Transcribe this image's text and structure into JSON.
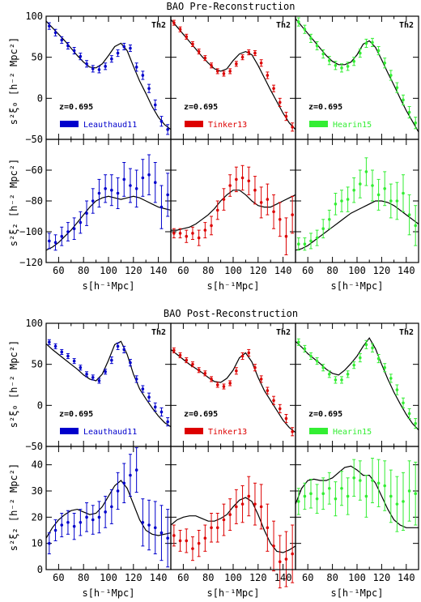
{
  "figure": {
    "blocks": [
      {
        "title": "BAO Pre-Reconstruction"
      },
      {
        "title": "BAO Post-Reconstruction"
      }
    ],
    "column_labels": [
      "Leauthaud11",
      "Tinker13",
      "Hearin15"
    ],
    "column_colors": [
      "#0000cc",
      "#dd0000",
      "#33ee33"
    ],
    "redshift_label": "z=0.695",
    "model_label": "Th2",
    "ylabel_xi0": "s²ξ₀ [h⁻² Mpc²]",
    "ylabel_xi2": "s²ξ₂ [h⁻² Mpc²]",
    "xlabel": "s[h⁻¹Mpc]"
  },
  "chart_data": [
    {
      "type": "scatter",
      "title": "BAO Pre-Reconstruction",
      "panel": "monopole",
      "xlim": [
        50,
        150
      ],
      "ylim": [
        -50,
        100
      ],
      "xticks": [
        60,
        80,
        100,
        120,
        140
      ],
      "yticks": [
        -50,
        0,
        50,
        100
      ],
      "ylabel": "s²ξ₀ [h⁻² Mpc²]",
      "x": [
        52.5,
        57.5,
        62.5,
        67.5,
        72.5,
        77.5,
        82.5,
        87.5,
        92.5,
        97.5,
        102.5,
        107.5,
        112.5,
        117.5,
        122.5,
        127.5,
        132.5,
        137.5,
        142.5,
        147.5
      ],
      "model": {
        "x": [
          50,
          55,
          60,
          65,
          70,
          75,
          80,
          85,
          90,
          95,
          100,
          105,
          110,
          115,
          120,
          125,
          130,
          135,
          140,
          145,
          150
        ],
        "series": [
          {
            "y": [
              94,
              86,
              78,
              70,
              61,
              52,
              44,
              38,
              37,
              42,
              52,
              63,
              67,
              58,
              39,
              21,
              6,
              -10,
              -23,
              -32,
              -38
            ]
          },
          {
            "y": [
              96,
              87,
              78,
              69,
              60,
              51,
              43,
              36,
              33,
              36,
              46,
              54,
              57,
              53,
              40,
              25,
              10,
              -4,
              -18,
              -30,
              -38
            ]
          },
          {
            "y": [
              97,
              88,
              79,
              70,
              61,
              52,
              45,
              41,
              41,
              44,
              53,
              66,
              70,
              62,
              47,
              31,
              16,
              0,
              -15,
              -28,
              -41
            ]
          }
        ]
      },
      "series": [
        {
          "name": "Leauthaud11",
          "y": [
            88,
            80,
            71,
            64,
            58,
            51,
            42,
            36,
            35,
            39,
            48,
            55,
            63,
            61,
            38,
            28,
            12,
            -8,
            -28,
            -38
          ],
          "err": [
            4,
            4,
            4,
            4,
            4,
            4,
            4,
            4,
            4,
            4,
            4,
            4,
            4,
            4,
            5,
            5,
            5,
            6,
            6,
            6
          ]
        },
        {
          "name": "Tinker13",
          "y": [
            92,
            84,
            75,
            66,
            57,
            49,
            40,
            33,
            30,
            33,
            42,
            50,
            56,
            55,
            43,
            28,
            12,
            -5,
            -22,
            -35
          ],
          "err": [
            3,
            3,
            3,
            3,
            3,
            3,
            3,
            3,
            3,
            3,
            3,
            3,
            3,
            3,
            4,
            4,
            4,
            5,
            5,
            5
          ]
        },
        {
          "name": "Hearin15",
          "y": [
            93,
            84,
            73,
            64,
            54,
            46,
            40,
            37,
            39,
            45,
            55,
            67,
            68,
            58,
            43,
            28,
            13,
            -2,
            -17,
            -30
          ],
          "err": [
            5,
            5,
            5,
            5,
            5,
            5,
            5,
            5,
            5,
            5,
            5,
            5,
            5,
            5,
            6,
            6,
            6,
            6,
            7,
            7
          ]
        }
      ]
    },
    {
      "type": "scatter",
      "title": "BAO Pre-Reconstruction",
      "panel": "quadrupole",
      "xlim": [
        50,
        150
      ],
      "ylim": [
        -120,
        -40
      ],
      "xticks": [
        60,
        80,
        100,
        120,
        140
      ],
      "yticks": [
        -120,
        -100,
        -80,
        -60
      ],
      "ylabel": "s²ξ₂ [h⁻² Mpc²]",
      "xlabel": "s[h⁻¹Mpc]",
      "x": [
        52.5,
        57.5,
        62.5,
        67.5,
        72.5,
        77.5,
        82.5,
        87.5,
        92.5,
        97.5,
        102.5,
        107.5,
        112.5,
        117.5,
        122.5,
        127.5,
        132.5,
        137.5,
        142.5,
        147.5
      ],
      "model": {
        "x": [
          50,
          55,
          60,
          65,
          70,
          75,
          80,
          85,
          90,
          95,
          100,
          105,
          110,
          115,
          120,
          125,
          130,
          135,
          140,
          145,
          150
        ],
        "series": [
          {
            "y": [
              -112,
              -110,
              -107,
              -103,
              -99,
              -94,
              -89,
              -84,
              -80,
              -78,
              -77,
              -78,
              -79,
              -78,
              -77,
              -78,
              -80,
              -82,
              -84,
              -85,
              -86
            ]
          },
          {
            "y": [
              -99,
              -99,
              -98,
              -97,
              -95,
              -92,
              -89,
              -85,
              -80,
              -76,
              -73,
              -73,
              -76,
              -80,
              -83,
              -84,
              -84,
              -82,
              -80,
              -78,
              -76
            ]
          },
          {
            "y": [
              -112,
              -111,
              -109,
              -106,
              -103,
              -100,
              -97,
              -94,
              -91,
              -88,
              -86,
              -84,
              -82,
              -80,
              -80,
              -81,
              -83,
              -86,
              -89,
              -92,
              -95
            ]
          }
        ]
      },
      "series": [
        {
          "name": "Leauthaud11",
          "y": [
            -106,
            -107,
            -103,
            -100,
            -98,
            -94,
            -88,
            -80,
            -75,
            -72,
            -73,
            -75,
            -66,
            -70,
            -72,
            -65,
            -63,
            -68,
            -84,
            -76
          ],
          "err": [
            5,
            5,
            6,
            6,
            7,
            7,
            8,
            8,
            9,
            9,
            10,
            10,
            11,
            11,
            12,
            12,
            13,
            13,
            14,
            14
          ]
        },
        {
          "name": "Tinker13",
          "y": [
            -101,
            -101,
            -103,
            -101,
            -104,
            -99,
            -96,
            -86,
            -79,
            -70,
            -66,
            -65,
            -67,
            -73,
            -81,
            -79,
            -87,
            -92,
            -103,
            -89
          ],
          "err": [
            3,
            3,
            4,
            4,
            5,
            5,
            6,
            6,
            7,
            7,
            8,
            8,
            9,
            9,
            10,
            10,
            11,
            11,
            12,
            12
          ]
        },
        {
          "name": "Hearin15",
          "y": [
            -108,
            -108,
            -106,
            -104,
            -98,
            -92,
            -82,
            -80,
            -79,
            -73,
            -69,
            -61,
            -70,
            -76,
            -72,
            -80,
            -80,
            -75,
            -89,
            -96
          ],
          "err": [
            4,
            4,
            5,
            5,
            6,
            6,
            7,
            7,
            8,
            8,
            9,
            9,
            10,
            10,
            11,
            11,
            12,
            12,
            13,
            13
          ]
        }
      ]
    },
    {
      "type": "scatter",
      "title": "BAO Post-Reconstruction",
      "panel": "monopole",
      "xlim": [
        50,
        150
      ],
      "ylim": [
        -50,
        100
      ],
      "xticks": [
        60,
        80,
        100,
        120,
        140
      ],
      "yticks": [
        -50,
        0,
        50,
        100
      ],
      "ylabel": "s²ξ₀ [h⁻² Mpc²]",
      "x": [
        52.5,
        57.5,
        62.5,
        67.5,
        72.5,
        77.5,
        82.5,
        87.5,
        92.5,
        97.5,
        102.5,
        107.5,
        112.5,
        117.5,
        122.5,
        127.5,
        132.5,
        137.5,
        142.5,
        147.5
      ],
      "model": {
        "x": [
          50,
          55,
          60,
          65,
          70,
          75,
          80,
          85,
          90,
          95,
          100,
          105,
          110,
          115,
          120,
          125,
          130,
          135,
          140,
          145,
          150
        ],
        "series": [
          {
            "y": [
              75,
              68,
              62,
              56,
              50,
              44,
              37,
              32,
              30,
              38,
              55,
              74,
              78,
              62,
              38,
              20,
              8,
              -3,
              -13,
              -21,
              -26
            ]
          },
          {
            "y": [
              68,
              62,
              56,
              50,
              45,
              40,
              34,
              29,
              28,
              33,
              43,
              58,
              64,
              53,
              34,
              18,
              6,
              -6,
              -18,
              -27,
              -33
            ]
          },
          {
            "y": [
              78,
              71,
              63,
              57,
              51,
              44,
              39,
              37,
              43,
              51,
              60,
              72,
              82,
              69,
              50,
              32,
              16,
              2,
              -11,
              -22,
              -30
            ]
          }
        ]
      },
      "series": [
        {
          "name": "Leauthaud11",
          "y": [
            77,
            72,
            65,
            60,
            54,
            46,
            38,
            34,
            30,
            41,
            55,
            72,
            68,
            52,
            32,
            20,
            10,
            -2,
            -8,
            -20
          ],
          "err": [
            3,
            3,
            3,
            3,
            3,
            3,
            3,
            3,
            3,
            3,
            4,
            4,
            4,
            4,
            4,
            4,
            5,
            5,
            5,
            5
          ]
        },
        {
          "name": "Tinker13",
          "y": [
            67,
            61,
            55,
            50,
            43,
            39,
            32,
            25,
            23,
            27,
            42,
            60,
            64,
            46,
            32,
            18,
            6,
            -4,
            -16,
            -32
          ],
          "err": [
            3,
            3,
            3,
            3,
            3,
            3,
            3,
            3,
            3,
            3,
            4,
            4,
            4,
            4,
            4,
            4,
            5,
            5,
            5,
            5
          ]
        },
        {
          "name": "Hearin15",
          "y": [
            77,
            69,
            60,
            54,
            46,
            38,
            31,
            31,
            38,
            49,
            58,
            74,
            70,
            57,
            46,
            33,
            19,
            3,
            -10,
            -22
          ],
          "err": [
            4,
            4,
            4,
            4,
            4,
            4,
            4,
            4,
            4,
            4,
            5,
            5,
            5,
            5,
            5,
            5,
            6,
            6,
            6,
            6
          ]
        }
      ]
    },
    {
      "type": "scatter",
      "title": "BAO Post-Reconstruction",
      "panel": "quadrupole",
      "xlim": [
        50,
        150
      ],
      "ylim": [
        0,
        47
      ],
      "xticks": [
        60,
        80,
        100,
        120,
        140
      ],
      "yticks": [
        0,
        10,
        20,
        30,
        40
      ],
      "ylabel": "s²ξ₂ [h⁻² Mpc²]",
      "xlabel": "s[h⁻¹Mpc]",
      "x": [
        52.5,
        57.5,
        62.5,
        67.5,
        72.5,
        77.5,
        82.5,
        87.5,
        92.5,
        97.5,
        102.5,
        107.5,
        112.5,
        117.5,
        122.5,
        127.5,
        132.5,
        137.5,
        142.5,
        147.5
      ],
      "model": {
        "x": [
          50,
          55,
          60,
          65,
          70,
          75,
          80,
          85,
          90,
          95,
          100,
          105,
          110,
          115,
          120,
          125,
          130,
          135,
          140,
          145,
          150
        ],
        "series": [
          {
            "y": [
              12,
              16,
              19,
              21,
              22.5,
              23,
              22,
              21,
              21.5,
              24,
              28,
              32,
              34,
              31,
              25,
              19,
              15,
              13.5,
              13,
              13.5,
              14
            ]
          },
          {
            "y": [
              17,
              19,
              20,
              20.5,
              20.5,
              19.5,
              18.5,
              18.5,
              19.5,
              21,
              24,
              26.5,
              27.5,
              26,
              21,
              15,
              10,
              7,
              6.5,
              7.5,
              9
            ]
          },
          {
            "y": [
              25,
              31,
              34,
              34.5,
              34,
              34,
              35,
              37,
              39,
              39.5,
              38,
              36,
              36,
              33,
              28,
              23,
              19,
              17,
              16,
              16,
              16
            ]
          }
        ]
      },
      "series": [
        {
          "name": "Leauthaud11",
          "y": [
            10,
            15,
            17,
            18,
            16.5,
            18,
            20,
            19,
            20,
            22,
            24,
            30,
            33,
            36,
            38,
            18,
            17,
            16,
            14,
            12
          ],
          "err": [
            4,
            4,
            4.5,
            4.5,
            5,
            5,
            5.5,
            5.5,
            6,
            6,
            6.5,
            7,
            7.5,
            8,
            8.5,
            9,
            9.5,
            10,
            10.5,
            11
          ]
        },
        {
          "name": "Tinker13",
          "y": [
            13,
            11,
            11,
            8,
            10,
            12,
            16,
            16,
            19,
            21,
            24,
            25,
            28,
            25,
            24,
            16,
            9,
            3,
            4,
            6
          ],
          "err": [
            4,
            4,
            4.5,
            4.5,
            5,
            5,
            5.5,
            5.5,
            6,
            6,
            6.5,
            7,
            7.5,
            8,
            8.5,
            9,
            9.5,
            10,
            10.5,
            11
          ]
        },
        {
          "name": "Hearin15",
          "y": [
            26,
            28,
            29,
            27,
            29,
            31,
            27,
            31,
            28,
            35,
            34,
            28,
            34,
            33,
            32,
            28,
            25,
            26,
            30,
            29
          ],
          "err": [
            5,
            5,
            5.5,
            5.5,
            6,
            6,
            6.5,
            6.5,
            7,
            7,
            7.5,
            8,
            8.5,
            9,
            9.5,
            10,
            10.5,
            11,
            11.5,
            12
          ]
        }
      ]
    }
  ]
}
